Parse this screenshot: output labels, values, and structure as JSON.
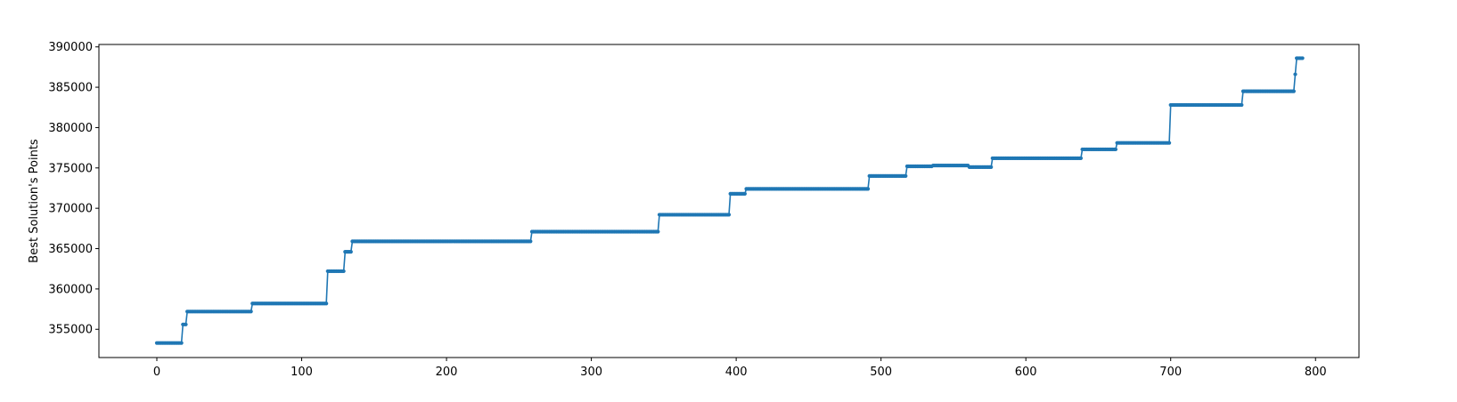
{
  "chart_data": {
    "type": "line",
    "title": "",
    "xlabel": "",
    "ylabel": "Best Solution's Points",
    "xlim": [
      -40,
      830
    ],
    "ylim": [
      351500,
      390300
    ],
    "xticks": [
      0,
      100,
      200,
      300,
      400,
      500,
      600,
      700,
      800
    ],
    "yticks": [
      355000,
      360000,
      365000,
      370000,
      375000,
      380000,
      385000,
      390000
    ],
    "grid": false,
    "legend": "none",
    "series_color": "#1f77b4",
    "x_range": [
      0,
      791
    ],
    "steps": [
      {
        "x": 0,
        "y": 353300
      },
      {
        "x": 18,
        "y": 355600
      },
      {
        "x": 21,
        "y": 357200
      },
      {
        "x": 66,
        "y": 358200
      },
      {
        "x": 118,
        "y": 362200
      },
      {
        "x": 130,
        "y": 364600
      },
      {
        "x": 135,
        "y": 365900
      },
      {
        "x": 259,
        "y": 367100
      },
      {
        "x": 347,
        "y": 369200
      },
      {
        "x": 396,
        "y": 371800
      },
      {
        "x": 407,
        "y": 372400
      },
      {
        "x": 492,
        "y": 374000
      },
      {
        "x": 518,
        "y": 375200
      },
      {
        "x": 536,
        "y": 375300
      },
      {
        "x": 561,
        "y": 375100
      },
      {
        "x": 577,
        "y": 376200
      },
      {
        "x": 639,
        "y": 377300
      },
      {
        "x": 663,
        "y": 378100
      },
      {
        "x": 700,
        "y": 382800
      },
      {
        "x": 750,
        "y": 384500
      },
      {
        "x": 786,
        "y": 386600
      },
      {
        "x": 787,
        "y": 388600
      }
    ]
  }
}
